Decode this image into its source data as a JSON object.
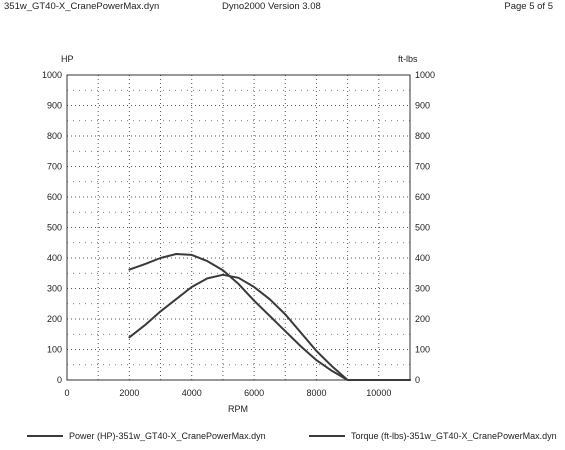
{
  "header": {
    "filename": "351w_GT40-X_CranePowerMax.dyn",
    "app": "Dyno2000  Version 3.08",
    "page": "Page 5 of 5"
  },
  "colors": {
    "line": "#3a3a3a",
    "grid": "#555555",
    "text": "#222222"
  },
  "chart_data": {
    "type": "line",
    "xlabel": "RPM",
    "ylabel_left": "HP",
    "ylabel_right": "ft-lbs",
    "xlim": [
      0,
      11000
    ],
    "ylim": [
      0,
      1000
    ],
    "x_ticks": [
      0,
      2000,
      4000,
      6000,
      8000,
      10000
    ],
    "y_ticks": [
      0,
      100,
      200,
      300,
      400,
      500,
      600,
      700,
      800,
      900,
      1000
    ],
    "grid": true,
    "legend_position": "bottom",
    "series": [
      {
        "name": "Power (HP)-351w_GT40-X_CranePowerMax.dyn",
        "points": [
          [
            2000,
            140
          ],
          [
            2500,
            180
          ],
          [
            3000,
            225
          ],
          [
            3500,
            265
          ],
          [
            4000,
            305
          ],
          [
            4500,
            333
          ],
          [
            5000,
            345
          ],
          [
            5500,
            335
          ],
          [
            6000,
            305
          ],
          [
            6500,
            265
          ],
          [
            7000,
            215
          ],
          [
            7500,
            155
          ],
          [
            8000,
            95
          ],
          [
            8500,
            45
          ],
          [
            9000,
            0
          ],
          [
            10000,
            0
          ],
          [
            11000,
            0
          ]
        ]
      },
      {
        "name": "Torque (ft-lbs)-351w_GT40-X_CranePowerMax.dyn",
        "points": [
          [
            2000,
            362
          ],
          [
            2500,
            380
          ],
          [
            3000,
            400
          ],
          [
            3500,
            413
          ],
          [
            4000,
            410
          ],
          [
            4500,
            390
          ],
          [
            5000,
            360
          ],
          [
            5500,
            315
          ],
          [
            6000,
            260
          ],
          [
            6500,
            210
          ],
          [
            7000,
            160
          ],
          [
            7500,
            110
          ],
          [
            8000,
            65
          ],
          [
            8500,
            30
          ],
          [
            9000,
            0
          ],
          [
            10000,
            0
          ],
          [
            11000,
            0
          ]
        ]
      }
    ]
  }
}
